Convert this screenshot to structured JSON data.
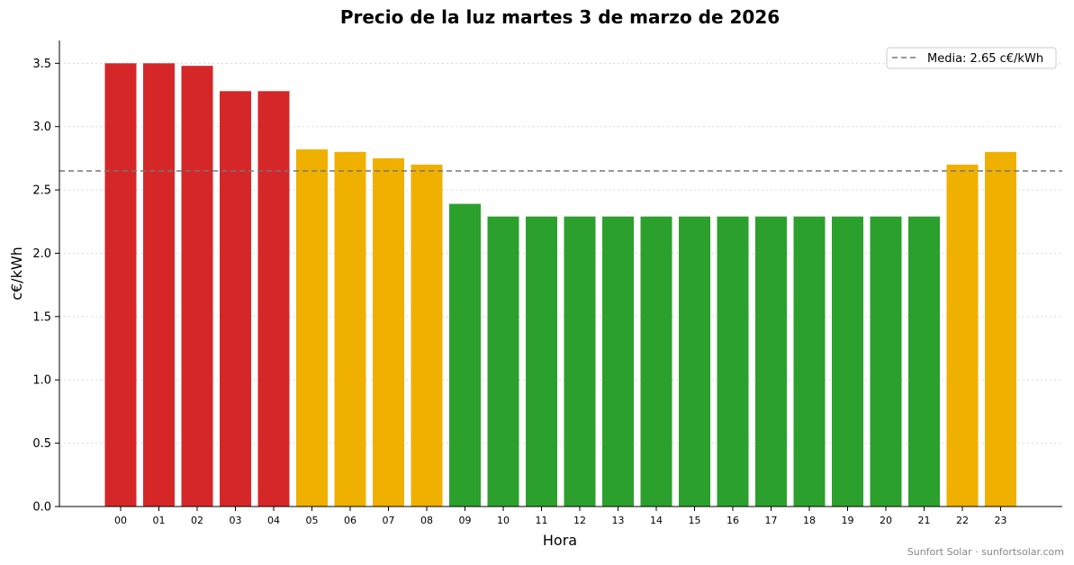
{
  "chart_data": {
    "type": "bar",
    "title": "Precio de la luz martes 3 de marzo de 2026",
    "xlabel": "Hora",
    "ylabel": "c€/kWh",
    "categories": [
      "00",
      "01",
      "02",
      "03",
      "04",
      "05",
      "06",
      "07",
      "08",
      "09",
      "10",
      "11",
      "12",
      "13",
      "14",
      "15",
      "16",
      "17",
      "18",
      "19",
      "20",
      "21",
      "22",
      "23"
    ],
    "values": [
      3.5,
      3.5,
      3.48,
      3.28,
      3.28,
      2.82,
      2.8,
      2.75,
      2.7,
      2.39,
      2.29,
      2.29,
      2.29,
      2.29,
      2.29,
      2.29,
      2.29,
      2.29,
      2.29,
      2.29,
      2.29,
      2.29,
      2.7,
      2.8
    ],
    "bar_levels": [
      "high",
      "high",
      "high",
      "high",
      "high",
      "mid",
      "mid",
      "mid",
      "mid",
      "low",
      "low",
      "low",
      "low",
      "low",
      "low",
      "low",
      "low",
      "low",
      "low",
      "low",
      "low",
      "low",
      "mid",
      "mid"
    ],
    "level_colors": {
      "high": "#d62728",
      "mid": "#f0b000",
      "low": "#2ca02c"
    },
    "ylim": [
      0,
      3.68
    ],
    "yticks": [
      "0.0",
      "0.5",
      "1.0",
      "1.5",
      "2.0",
      "2.5",
      "3.0",
      "3.5"
    ],
    "grid": "horizontal-dotted",
    "mean_line": {
      "value": 2.65,
      "color": "#777777"
    },
    "legend": {
      "label": "Media: 2.65 c€/kWh",
      "placement": "top-right"
    },
    "footer": "Sunfort Solar · sunfortsolar.com"
  }
}
